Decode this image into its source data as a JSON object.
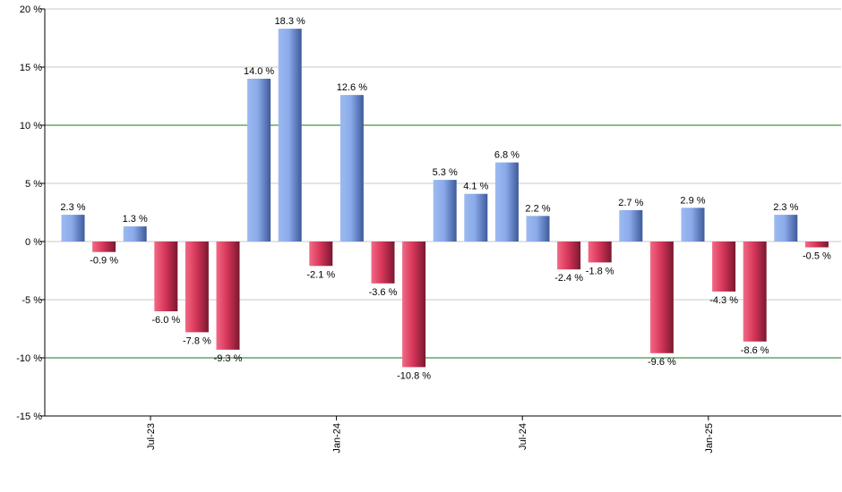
{
  "chart_data": {
    "type": "bar",
    "title": "",
    "xlabel": "",
    "ylabel": "",
    "ylim": [
      -15,
      20
    ],
    "yticks": [
      20,
      15,
      10,
      5,
      0,
      -5,
      -10,
      -15
    ],
    "ytick_labels": [
      "20 %",
      "15 %",
      "10 %",
      "5 %",
      "0 %",
      "-5 %",
      "-10 %",
      "-15 %"
    ],
    "highlight_lines": [
      10,
      -10
    ],
    "grid": true,
    "positive_color": "#7a9fe6",
    "negative_color": "#d8375a",
    "highlight_line_color": "#1a7a1a",
    "x_ticks": [
      {
        "label": "Jul-23",
        "after_bar": 2
      },
      {
        "label": "Jan-24",
        "after_bar": 8
      },
      {
        "label": "Jul-24",
        "after_bar": 14
      },
      {
        "label": "Jan-25",
        "after_bar": 20
      }
    ],
    "values": [
      2.3,
      -0.9,
      1.3,
      -6.0,
      -7.8,
      -9.3,
      14.0,
      18.3,
      -2.1,
      12.6,
      -3.6,
      -10.8,
      5.3,
      4.1,
      6.8,
      2.2,
      -2.4,
      -1.8,
      2.7,
      -9.6,
      2.9,
      -4.3,
      -8.6,
      2.3,
      -0.5
    ],
    "labels": [
      "2.3 %",
      "-0.9 %",
      "1.3 %",
      "-6.0 %",
      "-7.8 %",
      "-9.3 %",
      "14.0 %",
      "18.3 %",
      "-2.1 %",
      "12.6 %",
      "-3.6 %",
      "-10.8 %",
      "5.3 %",
      "4.1 %",
      "6.8 %",
      "2.2 %",
      "-2.4 %",
      "-1.8 %",
      "2.7 %",
      "-9.6 %",
      "2.9 %",
      "-4.3 %",
      "-8.6 %",
      "2.3 %",
      "-0.5 %"
    ]
  }
}
